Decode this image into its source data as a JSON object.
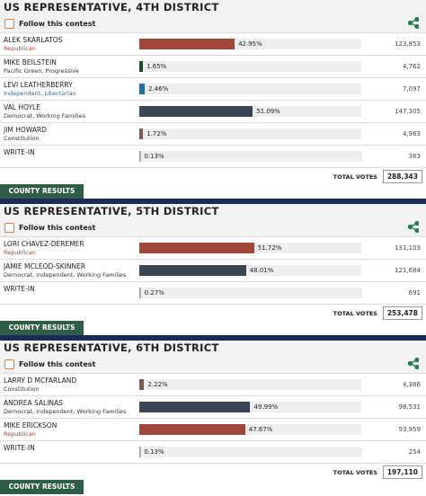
{
  "contests": [
    {
      "title": "US REPRESENTATIVE, 4TH DISTRICT",
      "follow": "Follow this contest",
      "candidates": [
        {
          "name": "ALEK SKARLATOS",
          "party": "Republican",
          "party_color": "#a0473b",
          "pct": 42.95,
          "pct_label": "42.95%",
          "votes": "123,853",
          "color": "#a0473b"
        },
        {
          "name": "MIKE BEILSTEIN",
          "party": "Pacific Green, Progressive",
          "party_color": "#333333",
          "pct": 1.65,
          "pct_label": "1.65%",
          "votes": "4,762",
          "color": "#1f4d2b"
        },
        {
          "name": "LEVI LEATHERBERRY",
          "party": "Independent, Libertarian",
          "party_color": "#1f6fa5",
          "pct": 2.46,
          "pct_label": "2.46%",
          "votes": "7,097",
          "color": "#1f6fa5"
        },
        {
          "name": "VAL HOYLE",
          "party": "Democrat, Working Families",
          "party_color": "#333333",
          "pct": 51.09,
          "pct_label": "51.09%",
          "votes": "147,305",
          "color": "#3b4556"
        },
        {
          "name": "JIM HOWARD",
          "party": "Constitution",
          "party_color": "#333333",
          "pct": 1.72,
          "pct_label": "1.72%",
          "votes": "4,963",
          "color": "#7a5c52"
        },
        {
          "name": "WRITE-IN",
          "pct": 0.13,
          "pct_label": "0.13%",
          "votes": "363",
          "color": "#bbbbbb"
        }
      ],
      "total_label": "TOTAL VOTES",
      "total": "288,343",
      "button": "COUNTY RESULTS"
    },
    {
      "title": "US REPRESENTATIVE, 5TH DISTRICT",
      "follow": "Follow this contest",
      "candidates": [
        {
          "name": "LORI CHAVEZ-DEREMER",
          "party": "Republican",
          "party_color": "#a0473b",
          "pct": 51.72,
          "pct_label": "51.72%",
          "votes": "131,103",
          "color": "#a0473b"
        },
        {
          "name": "JAMIE MCLEOD-SKINNER",
          "party": "Democrat, Independent, Working Families",
          "party_color": "#333333",
          "pct": 48.01,
          "pct_label": "48.01%",
          "votes": "121,684",
          "color": "#3b4556"
        },
        {
          "name": "WRITE-IN",
          "pct": 0.27,
          "pct_label": "0.27%",
          "votes": "691",
          "color": "#bbbbbb"
        }
      ],
      "total_label": "TOTAL VOTES",
      "total": "253,478",
      "button": "COUNTY RESULTS"
    },
    {
      "title": "US REPRESENTATIVE, 6TH DISTRICT",
      "follow": "Follow this contest",
      "candidates": [
        {
          "name": "LARRY D MCFARLAND",
          "party": "Constitution",
          "party_color": "#333333",
          "pct": 2.22,
          "pct_label": "2.22%",
          "votes": "4,366",
          "color": "#7a5c52"
        },
        {
          "name": "ANDREA SALINAS",
          "party": "Democrat, Independent, Working Families",
          "party_color": "#333333",
          "pct": 49.99,
          "pct_label": "49.99%",
          "votes": "98,531",
          "color": "#3b4556"
        },
        {
          "name": "MIKE ERICKSON",
          "party": "Republican",
          "party_color": "#a0473b",
          "pct": 47.67,
          "pct_label": "47.67%",
          "votes": "93,959",
          "color": "#a0473b"
        },
        {
          "name": "WRITE-IN",
          "pct": 0.13,
          "pct_label": "0.13%",
          "votes": "254",
          "color": "#bbbbbb"
        }
      ],
      "total_label": "TOTAL VOTES",
      "total": "197,110",
      "button": "COUNTY RESULTS"
    }
  ]
}
